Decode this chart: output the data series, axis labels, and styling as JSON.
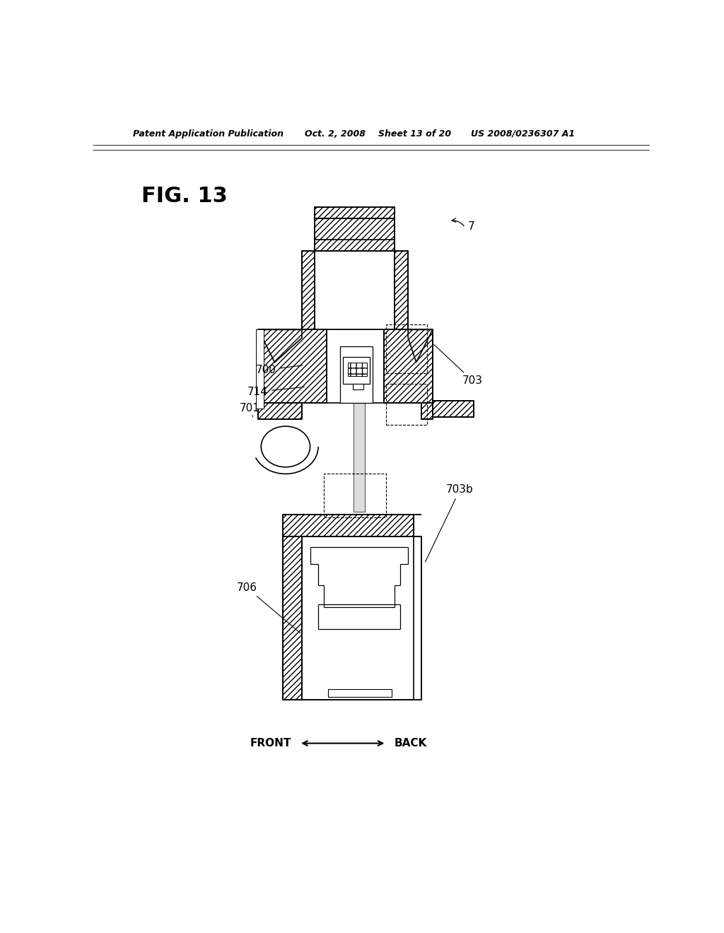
{
  "background_color": "#ffffff",
  "header_text": "Patent Application Publication",
  "header_date": "Oct. 2, 2008",
  "header_sheet": "Sheet 13 of 20",
  "header_patent": "US 2008/0236307 A1",
  "fig_label": "FIG. 13",
  "hatch_style": "////",
  "line_width": 1.2
}
